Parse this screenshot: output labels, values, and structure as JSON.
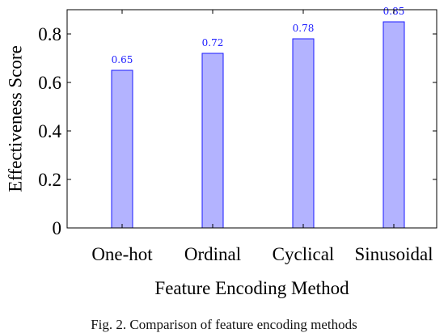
{
  "chart_data": {
    "type": "bar",
    "categories": [
      "One-hot",
      "Ordinal",
      "Cyclical",
      "Sinusoidal"
    ],
    "values": [
      0.65,
      0.72,
      0.78,
      0.85
    ],
    "value_labels": [
      "0.65",
      "0.72",
      "0.78",
      "0.85"
    ],
    "xlabel": "Feature Encoding Method",
    "ylabel": "Effectiveness Score",
    "ylim": [
      0,
      0.9
    ],
    "yticks": [
      0,
      0.2,
      0.4,
      0.6,
      0.8
    ],
    "ytick_labels": [
      "0",
      "0.2",
      "0.4",
      "0.6",
      "0.8"
    ],
    "grid": false,
    "colors": {
      "bar_fill": "#b3b3ff",
      "bar_stroke": "#1a1aff",
      "value_label": "#1a1aff"
    }
  },
  "caption": "Fig. 2.  Comparison of feature encoding methods"
}
